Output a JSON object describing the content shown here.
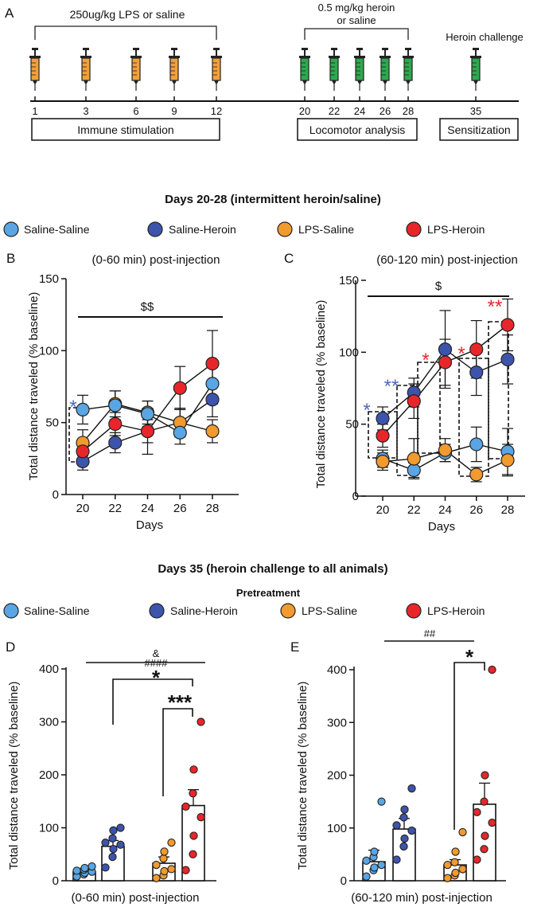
{
  "colors": {
    "saline_saline": "#5aa5e3",
    "saline_heroin": "#3d54ad",
    "lps_saline": "#f19a2e",
    "lps_heroin": "#e8262a",
    "star_blue": "#5069b8",
    "star_red": "#e8262a",
    "syringe_orange": "#f0a13c",
    "syringe_green": "#2fa84f"
  },
  "panelA": {
    "letter": "A",
    "lps_label": "250ug/kg LPS  or saline",
    "heroin_label_1": "0.5 mg/kg heroin",
    "heroin_label_2": "or saline",
    "challenge_label": "Heroin challenge",
    "days": [
      "1",
      "3",
      "6",
      "9",
      "12",
      "20",
      "22",
      "24",
      "26",
      "28",
      "35"
    ],
    "box_immune": "Immune stimulation",
    "box_locomotor": "Locomotor analysis",
    "box_sensitization": "Sensitization"
  },
  "section1_title": "Days 20-28 (intermittent heroin/saline)",
  "section2_title": "Days 35 (heroin challenge to all animals)",
  "pretreatment_label": "Pretreatment",
  "legend": [
    "Saline-Saline",
    "Saline-Heroin",
    "LPS-Saline",
    "LPS-Heroin"
  ],
  "panelB": {
    "letter": "B",
    "title": "(0-60 min) post-injection",
    "sig_bar": "$$",
    "star_day20": "*"
  },
  "panelC": {
    "letter": "C",
    "title": "(60-120 min) post-injection",
    "sig_bar": "$",
    "stars": [
      {
        "day": 20,
        "text": "*",
        "group": "blue"
      },
      {
        "day": 22,
        "text": "**",
        "group": "blue"
      },
      {
        "day": 24,
        "text": "*",
        "group": "red"
      },
      {
        "day": 26,
        "text": "*",
        "group": "red"
      },
      {
        "day": 28,
        "text": "**",
        "group": "red"
      }
    ]
  },
  "panelD": {
    "letter": "D",
    "sig_amp": "&",
    "sig_hash": "####",
    "sig_star1": "*",
    "sig_star3": "***"
  },
  "panelE": {
    "letter": "E",
    "sig_hash": "##",
    "sig_star": "*"
  },
  "chart_data": [
    {
      "type": "line",
      "title": "(0-60 min) post-injection",
      "xlabel": "Days",
      "ylabel": "Total distance traveled (% baseline)",
      "x": [
        20,
        22,
        24,
        26,
        28
      ],
      "ylim": [
        0,
        150
      ],
      "yticks": [
        0,
        50,
        100,
        150
      ],
      "series": [
        {
          "name": "Saline-Saline",
          "values": [
            59,
            62,
            56,
            43,
            77
          ],
          "err": [
            10,
            10,
            9,
            8,
            14
          ]
        },
        {
          "name": "Saline-Heroin",
          "values": [
            23,
            36,
            44,
            50,
            66
          ],
          "err": [
            6,
            7,
            8,
            10,
            12
          ]
        },
        {
          "name": "LPS-Saline",
          "values": [
            36,
            63,
            57,
            50,
            44
          ],
          "err": [
            9,
            9,
            8,
            9,
            8
          ]
        },
        {
          "name": "LPS-Heroin",
          "values": [
            30,
            49,
            44,
            74,
            91
          ],
          "err": [
            7,
            8,
            16,
            15,
            23
          ]
        }
      ]
    },
    {
      "type": "line",
      "title": "(60-120 min) post-injection",
      "xlabel": "Days",
      "ylabel": "Total distance traveled (% baseline)",
      "x": [
        20,
        22,
        24,
        26,
        28
      ],
      "ylim": [
        0,
        150
      ],
      "yticks": [
        0,
        50,
        100,
        150
      ],
      "series": [
        {
          "name": "Saline-Saline",
          "values": [
            26,
            18,
            30,
            36,
            31
          ],
          "err": [
            6,
            5,
            6,
            12,
            16
          ]
        },
        {
          "name": "Saline-Heroin",
          "values": [
            54,
            72,
            102,
            86,
            95
          ],
          "err": [
            8,
            10,
            27,
            16,
            17
          ]
        },
        {
          "name": "LPS-Saline",
          "values": [
            24,
            26,
            32,
            15,
            25
          ],
          "err": [
            6,
            14,
            8,
            5,
            11
          ]
        },
        {
          "name": "LPS-Heroin",
          "values": [
            42,
            66,
            93,
            102,
            119
          ],
          "err": [
            8,
            12,
            16,
            20,
            18
          ]
        }
      ]
    },
    {
      "type": "bar",
      "title": "(0-60 min) post-injection",
      "ylabel": "Total distance traveled (% baseline)",
      "categories": [
        "Saline-Saline",
        "Saline-Heroin",
        "LPS-Saline",
        "LPS-Heroin"
      ],
      "values": [
        17,
        65,
        33,
        142
      ],
      "sem": [
        5,
        11,
        12,
        30
      ],
      "ylim": [
        0,
        400
      ],
      "yticks": [
        0,
        100,
        200,
        300,
        400
      ],
      "points": [
        [
          8,
          12,
          15,
          17,
          19,
          21,
          24,
          27
        ],
        [
          25,
          45,
          60,
          68,
          72,
          80,
          95,
          100
        ],
        [
          5,
          10,
          18,
          22,
          30,
          42,
          55,
          72
        ],
        [
          20,
          50,
          85,
          120,
          140,
          165,
          210,
          300
        ]
      ]
    },
    {
      "type": "bar",
      "title": "(60-120 min) post-injection",
      "ylabel": "Total distance traveled (% baseline)",
      "categories": [
        "Saline-Saline",
        "Saline-Heroin",
        "LPS-Saline",
        "LPS-Heroin"
      ],
      "values": [
        36,
        98,
        30,
        145
      ],
      "sem": [
        22,
        20,
        10,
        40
      ],
      "ylim": [
        0,
        400
      ],
      "yticks": [
        0,
        100,
        200,
        300,
        400
      ],
      "points": [
        [
          8,
          20,
          25,
          30,
          38,
          45,
          55,
          150
        ],
        [
          40,
          65,
          80,
          95,
          105,
          120,
          135,
          175
        ],
        [
          5,
          10,
          15,
          22,
          30,
          35,
          55,
          92
        ],
        [
          40,
          60,
          85,
          110,
          130,
          150,
          200,
          400
        ]
      ]
    }
  ]
}
